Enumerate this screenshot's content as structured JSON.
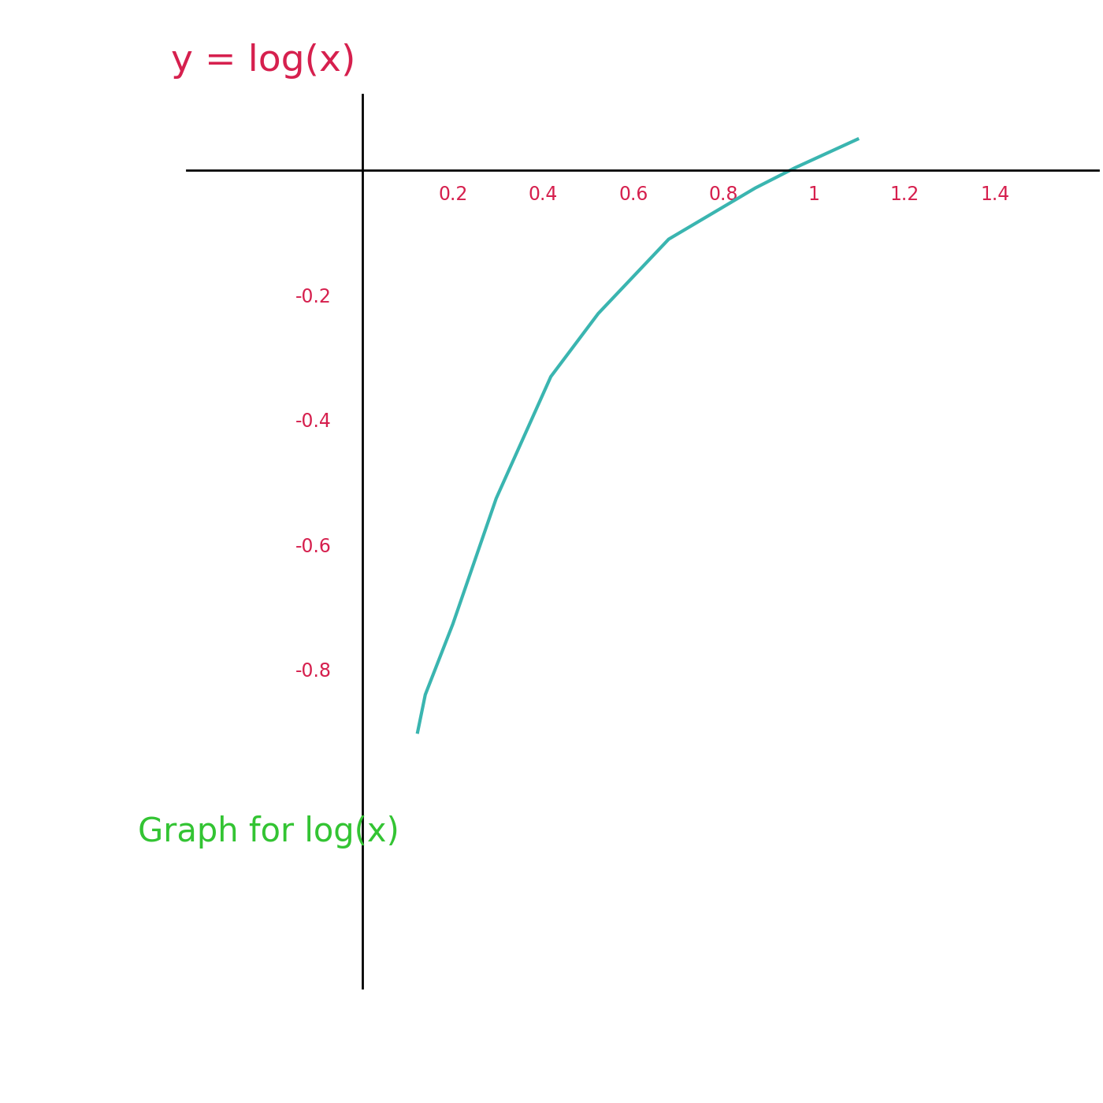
{
  "chart_data": {
    "type": "line",
    "title": "y = log(x)",
    "annotation": "Graph for log(x)",
    "x": [
      0.122,
      0.139,
      0.2,
      0.296,
      0.417,
      0.522,
      0.678,
      0.87,
      0.957,
      1.096
    ],
    "values": [
      -0.9,
      -0.84,
      -0.727,
      -0.526,
      -0.331,
      -0.23,
      -0.111,
      -0.029,
      0.003,
      0.049
    ],
    "color": "#3ab5b0",
    "xlim": [
      -0.39,
      1.63
    ],
    "ylim": [
      -1.31,
      0.12
    ],
    "xticks": [
      0.2,
      0.4,
      0.6,
      0.8,
      1,
      1.2,
      1.4
    ],
    "yticks": [
      -0.2,
      -0.4,
      -0.6,
      -0.8
    ],
    "grid": false
  }
}
